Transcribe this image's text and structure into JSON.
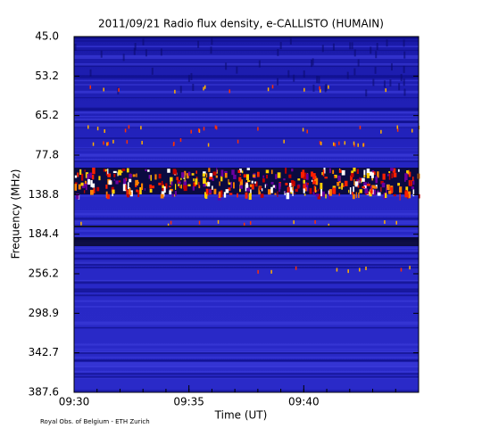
{
  "chart_data": {
    "type": "spectrogram",
    "title": "2011/09/21  Radio flux density, e-CALLISTO (HUMAIN)",
    "x_label": "Time (UT)",
    "y_label": "Frequency (MHz)",
    "xticks": [
      "09:30",
      "09:35",
      "09:40"
    ],
    "yticks": [
      "45.0",
      "53.2",
      "65.2",
      "77.8",
      "138.8",
      "184.4",
      "256.2",
      "298.9",
      "342.7",
      "387.6"
    ],
    "footer": "Royal Obs. of Belgium - ETH Zurich"
  }
}
